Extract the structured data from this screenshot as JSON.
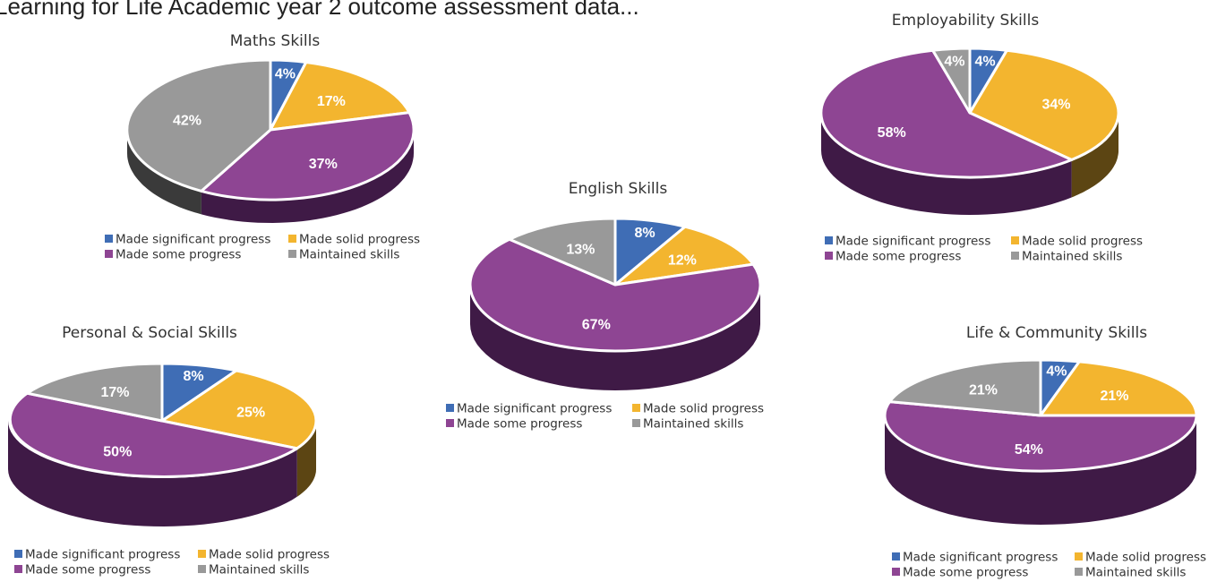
{
  "page": {
    "title": "Learning for Life Academic year 2 outcome assessment data..."
  },
  "colors": {
    "significant": "#3f6db5",
    "solid": "#f3b52f",
    "some": "#8e4593",
    "maintained": "#999999"
  },
  "legend_labels": [
    "Made significant progress",
    "Made solid progress",
    "Made some progress",
    "Maintained skills"
  ],
  "chart_data": [
    {
      "type": "pie",
      "title": "Maths Skills",
      "categories": [
        "Made significant progress",
        "Made solid progress",
        "Made some progress",
        "Maintained skills"
      ],
      "values": [
        4,
        17,
        37,
        42
      ],
      "labels": [
        "4%",
        "17%",
        "37%",
        "42%"
      ]
    },
    {
      "type": "pie",
      "title": "English Skills",
      "categories": [
        "Made significant progress",
        "Made solid progress",
        "Made some progress",
        "Maintained skills"
      ],
      "values": [
        8,
        12,
        67,
        13
      ],
      "labels": [
        "8%",
        "12%",
        "67%",
        "13%"
      ]
    },
    {
      "type": "pie",
      "title": "Employability Skills",
      "categories": [
        "Made significant progress",
        "Made solid progress",
        "Made some progress",
        "Maintained skills"
      ],
      "values": [
        4,
        34,
        58,
        4
      ],
      "labels": [
        "4%",
        "34%",
        "58%",
        "4%"
      ]
    },
    {
      "type": "pie",
      "title": "Personal & Social Skills",
      "categories": [
        "Made significant progress",
        "Made solid progress",
        "Made some progress",
        "Maintained skills"
      ],
      "values": [
        8,
        25,
        50,
        17
      ],
      "labels": [
        "8%",
        "25%",
        "50%",
        "17%"
      ]
    },
    {
      "type": "pie",
      "title": "Life & Community Skills",
      "categories": [
        "Made significant progress",
        "Made solid progress",
        "Made some progress",
        "Maintained skills"
      ],
      "values": [
        4,
        21,
        54,
        21
      ],
      "labels": [
        "4%",
        "21%",
        "54%",
        "21%"
      ]
    }
  ]
}
